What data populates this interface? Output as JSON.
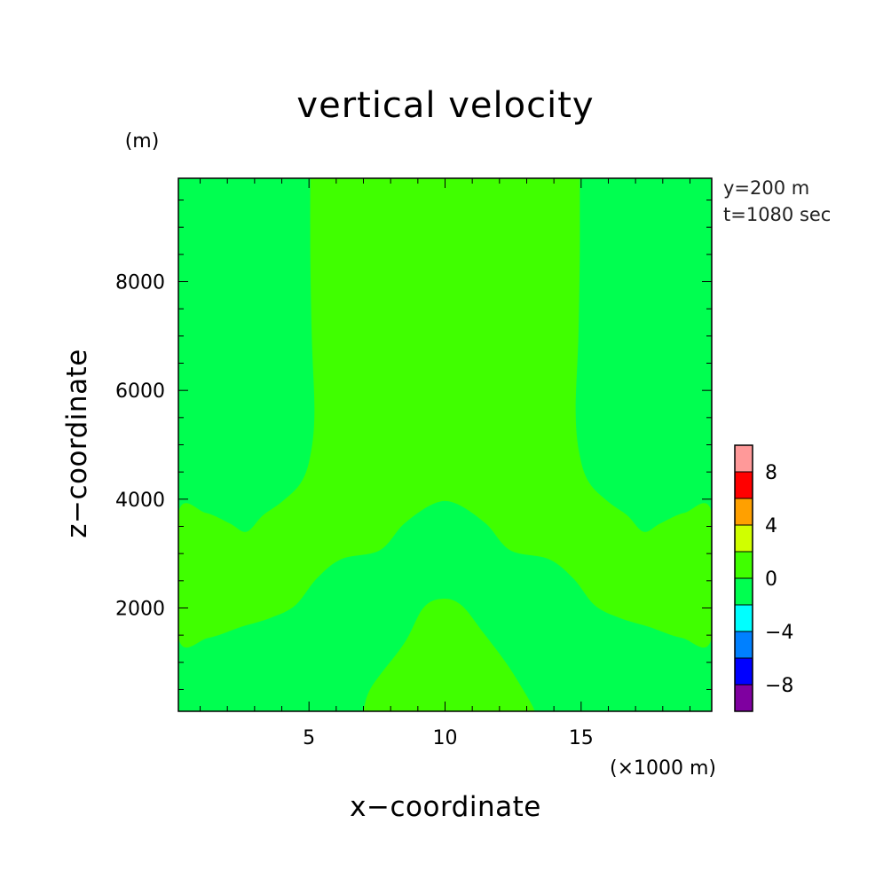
{
  "chart_data": {
    "type": "contour",
    "title": "vertical velocity",
    "xlabel": "x−coordinate",
    "ylabel": "z−coordinate",
    "x_unit": "(×1000 m)",
    "y_unit": "(m)",
    "xlim": [
      0.2,
      19.8
    ],
    "ylim": [
      100,
      9900
    ],
    "x_ticks": [
      5,
      10,
      15
    ],
    "x_tick_labels": [
      "5",
      "10",
      "15"
    ],
    "y_ticks": [
      2000,
      4000,
      6000,
      8000
    ],
    "y_tick_labels": [
      "2000",
      "4000",
      "6000",
      "8000"
    ],
    "annotations": [
      "y=200 m",
      "t=1080 sec"
    ],
    "colorbar": {
      "levels": [
        -10,
        -8,
        -6,
        -4,
        -2,
        0,
        2,
        4,
        6,
        8,
        10
      ],
      "tick_labels": [
        "−8",
        "−4",
        "0",
        "4",
        "8"
      ],
      "tick_values": [
        -8,
        -4,
        0,
        4,
        8
      ],
      "colors": [
        "#7f00a0",
        "#0000ff",
        "#0080ff",
        "#00ffff",
        "#00ff50",
        "#40ff00",
        "#d0ff00",
        "#ffa000",
        "#ff0000",
        "#ff9999"
      ]
    },
    "regions": [
      {
        "name": "band 0 to 2 (upper central plume and middle band)",
        "color": "#40ff00",
        "boundary": [
          [
            5.05,
            9900
          ],
          [
            5.05,
            8500
          ],
          [
            5.1,
            7000
          ],
          [
            5.2,
            5600
          ],
          [
            5.05,
            4800
          ],
          [
            4.7,
            4300
          ],
          [
            4.0,
            3950
          ],
          [
            3.3,
            3700
          ],
          [
            2.7,
            3400
          ],
          [
            2.1,
            3550
          ],
          [
            1.2,
            3750
          ],
          [
            0.2,
            3750
          ],
          [
            0.2,
            1450
          ],
          [
            1.3,
            1450
          ],
          [
            2.5,
            1650
          ],
          [
            3.6,
            1820
          ],
          [
            4.5,
            2050
          ],
          [
            5.3,
            2550
          ],
          [
            6.2,
            2900
          ],
          [
            7.6,
            3060
          ],
          [
            8.5,
            3550
          ],
          [
            9.6,
            3920
          ],
          [
            10.4,
            3920
          ],
          [
            11.5,
            3550
          ],
          [
            12.4,
            3060
          ],
          [
            13.8,
            2900
          ],
          [
            14.7,
            2550
          ],
          [
            15.5,
            2050
          ],
          [
            16.4,
            1820
          ],
          [
            17.5,
            1650
          ],
          [
            18.7,
            1450
          ],
          [
            19.8,
            1450
          ],
          [
            19.8,
            3750
          ],
          [
            18.8,
            3750
          ],
          [
            17.9,
            3550
          ],
          [
            17.3,
            3400
          ],
          [
            16.7,
            3700
          ],
          [
            16.0,
            3950
          ],
          [
            15.3,
            4300
          ],
          [
            14.95,
            4800
          ],
          [
            14.8,
            5600
          ],
          [
            14.9,
            7000
          ],
          [
            14.95,
            8500
          ],
          [
            14.95,
            9900
          ]
        ]
      },
      {
        "name": "band 0 to 2 (lower central bump)",
        "color": "#40ff00",
        "boundary": [
          [
            7.0,
            100
          ],
          [
            7.3,
            550
          ],
          [
            8.5,
            1350
          ],
          [
            9.2,
            2000
          ],
          [
            9.9,
            2170
          ],
          [
            10.6,
            2050
          ],
          [
            11.4,
            1550
          ],
          [
            12.3,
            950
          ],
          [
            13.1,
            300
          ],
          [
            13.3,
            100
          ]
        ]
      }
    ],
    "background_color": "#00ff50"
  }
}
